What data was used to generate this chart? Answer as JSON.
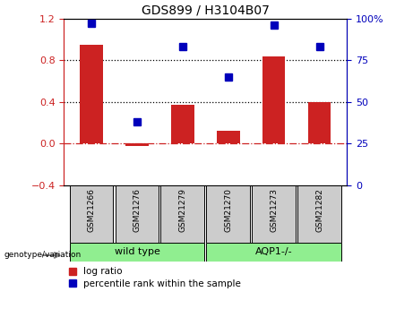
{
  "title": "GDS899 / H3104B07",
  "samples": [
    "GSM21266",
    "GSM21276",
    "GSM21279",
    "GSM21270",
    "GSM21273",
    "GSM21282"
  ],
  "log_ratio": [
    0.95,
    -0.02,
    0.37,
    0.12,
    0.84,
    0.4
  ],
  "percentile_rank": [
    97,
    38,
    83,
    65,
    96,
    83
  ],
  "group1_indices": [
    0,
    1,
    2
  ],
  "group2_indices": [
    3,
    4,
    5
  ],
  "group1_label": "wild type",
  "group2_label": "AQP1-/-",
  "group_color": "#90EE90",
  "bar_color": "#CC2222",
  "dot_color": "#0000BB",
  "left_ylim": [
    -0.4,
    1.2
  ],
  "left_yticks": [
    -0.4,
    0.0,
    0.4,
    0.8,
    1.2
  ],
  "right_ylim": [
    0,
    100
  ],
  "right_yticks": [
    0,
    25,
    50,
    75,
    100
  ],
  "right_yticklabels": [
    "0",
    "25",
    "50",
    "75",
    "100%"
  ],
  "hline_y": [
    0.0,
    0.4,
    0.8
  ],
  "hline_styles": [
    "dashdot",
    "dotted",
    "dotted"
  ],
  "hline_colors": [
    "#CC2222",
    "#000000",
    "#000000"
  ],
  "genotype_label": "genotype/variation",
  "legend_log_ratio": "log ratio",
  "legend_percentile": "percentile rank within the sample",
  "sample_box_color": "#CCCCCC",
  "bar_width": 0.5
}
